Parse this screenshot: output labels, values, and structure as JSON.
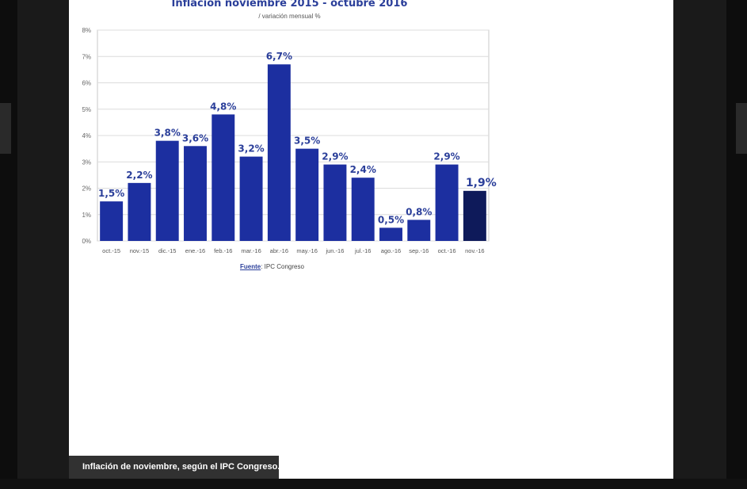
{
  "caption": "Inflación de noviembre, según el IPC Congreso.",
  "source": {
    "label": "Fuente",
    "text": ": IPC Congreso"
  },
  "chart_data": {
    "type": "bar",
    "title": "Inflación noviembre 2015 - octubre 2016",
    "subtitle": "/ variación mensual %",
    "categories": [
      "oct.-15",
      "nov.-15",
      "dic.-15",
      "ene.-16",
      "feb.-16",
      "mar.-16",
      "abr.-16",
      "may.-16",
      "jun.-16",
      "jul.-16",
      "ago.-16",
      "sep.-16",
      "oct.-16",
      "nov.-16"
    ],
    "values": [
      1.5,
      2.2,
      3.8,
      3.6,
      4.8,
      3.2,
      6.7,
      3.5,
      2.9,
      2.4,
      0.5,
      0.8,
      2.9,
      1.9
    ],
    "data_labels": [
      "1,5%",
      "2,2%",
      "3,8%",
      "3,6%",
      "4,8%",
      "3,2%",
      "6,7%",
      "3,5%",
      "2,9%",
      "2,4%",
      "0,5%",
      "0,8%",
      "2,9%",
      "1,9%"
    ],
    "yticks": [
      "0%",
      "1%",
      "2%",
      "3%",
      "4%",
      "5%",
      "6%",
      "7%",
      "8%"
    ],
    "ylim": [
      0,
      8
    ],
    "grid": true,
    "colors": {
      "bar": "#1c2fa0",
      "highlight": "#0e1a5a",
      "label": "#2b3f9a"
    }
  }
}
